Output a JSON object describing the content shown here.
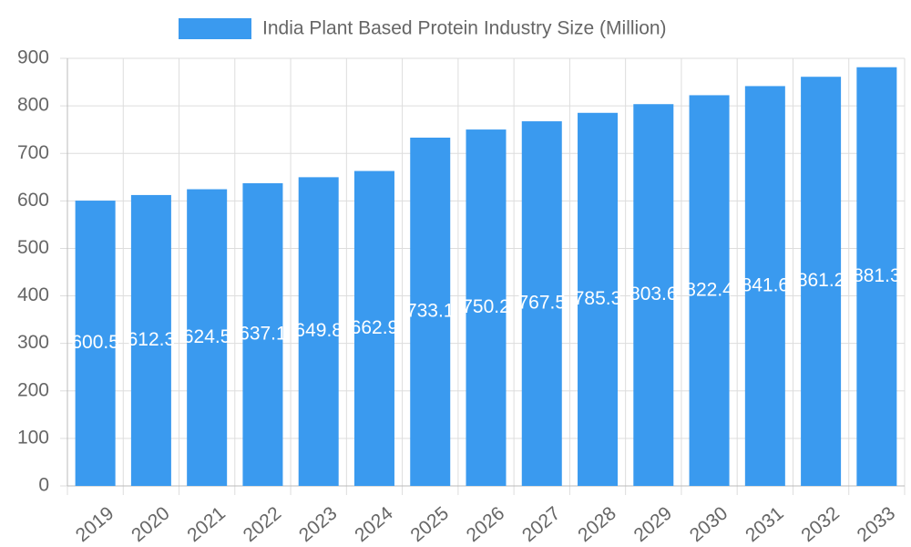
{
  "chart_data": {
    "type": "bar",
    "categories": [
      "2019",
      "2020",
      "2021",
      "2022",
      "2023",
      "2024",
      "2025",
      "2026",
      "2027",
      "2028",
      "2029",
      "2030",
      "2031",
      "2032",
      "2033"
    ],
    "series": [
      {
        "name": "India Plant Based Protein Industry Size (Million)",
        "color": "#3a9aef",
        "values": [
          600.5,
          612.3,
          624.5,
          637.1,
          649.8,
          662.9,
          733.1,
          750.2,
          767.5,
          785.3,
          803.6,
          822.4,
          841.6,
          861.2,
          881.3
        ]
      }
    ],
    "ylim": [
      0,
      900
    ],
    "yticks": [
      0,
      100,
      200,
      300,
      400,
      500,
      600,
      700,
      800,
      900
    ],
    "grid": true,
    "legend": "top"
  }
}
